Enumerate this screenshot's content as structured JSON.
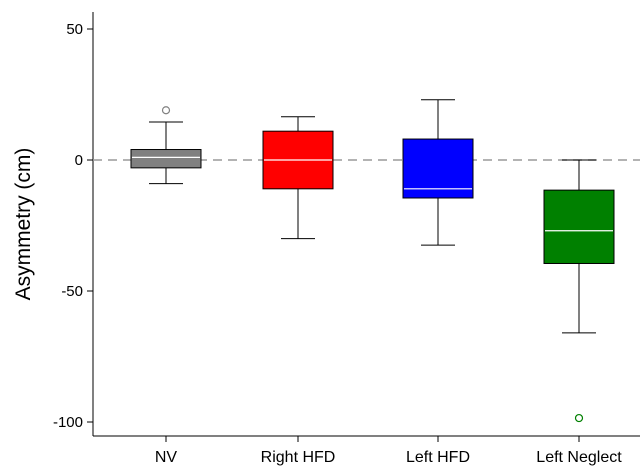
{
  "chart_data": {
    "type": "boxplot",
    "title": "",
    "xlabel": "",
    "ylabel": "Asymmetry (cm)",
    "ylim": [
      -106,
      57
    ],
    "yticks": [
      50,
      0,
      -50,
      -100
    ],
    "yticklabels": [
      "50",
      "0",
      "-50",
      "-100"
    ],
    "reference_line": {
      "y": 0,
      "style": "dashed"
    },
    "categories": [
      "NV",
      "Right HFD",
      "Left HFD",
      "Left Neglect"
    ],
    "boxes": [
      {
        "category": "NV",
        "whisker_low": -9,
        "q1": -3,
        "median": 1,
        "q3": 4,
        "whisker_high": 14.5,
        "outliers": [
          19
        ],
        "color": "#808080",
        "median_color": "#ffffff",
        "outlier_color": "#808080"
      },
      {
        "category": "Right HFD",
        "whisker_low": -30,
        "q1": -11,
        "median": 0,
        "q3": 11,
        "whisker_high": 16.5,
        "outliers": [],
        "color": "#ff0000",
        "median_color": "#ffffff",
        "outlier_color": "#ff0000"
      },
      {
        "category": "Left HFD",
        "whisker_low": -32.5,
        "q1": -14.5,
        "median": -11,
        "q3": 8,
        "whisker_high": 23,
        "outliers": [],
        "color": "#0000ff",
        "median_color": "#ffffff",
        "outlier_color": "#0000ff"
      },
      {
        "category": "Left Neglect",
        "whisker_low": -66,
        "q1": -39.5,
        "median": -27,
        "q3": -11.5,
        "whisker_high": 0,
        "outliers": [
          -98.5
        ],
        "color": "#008000",
        "median_color": "#ffffff",
        "outlier_color": "#008000"
      }
    ]
  }
}
